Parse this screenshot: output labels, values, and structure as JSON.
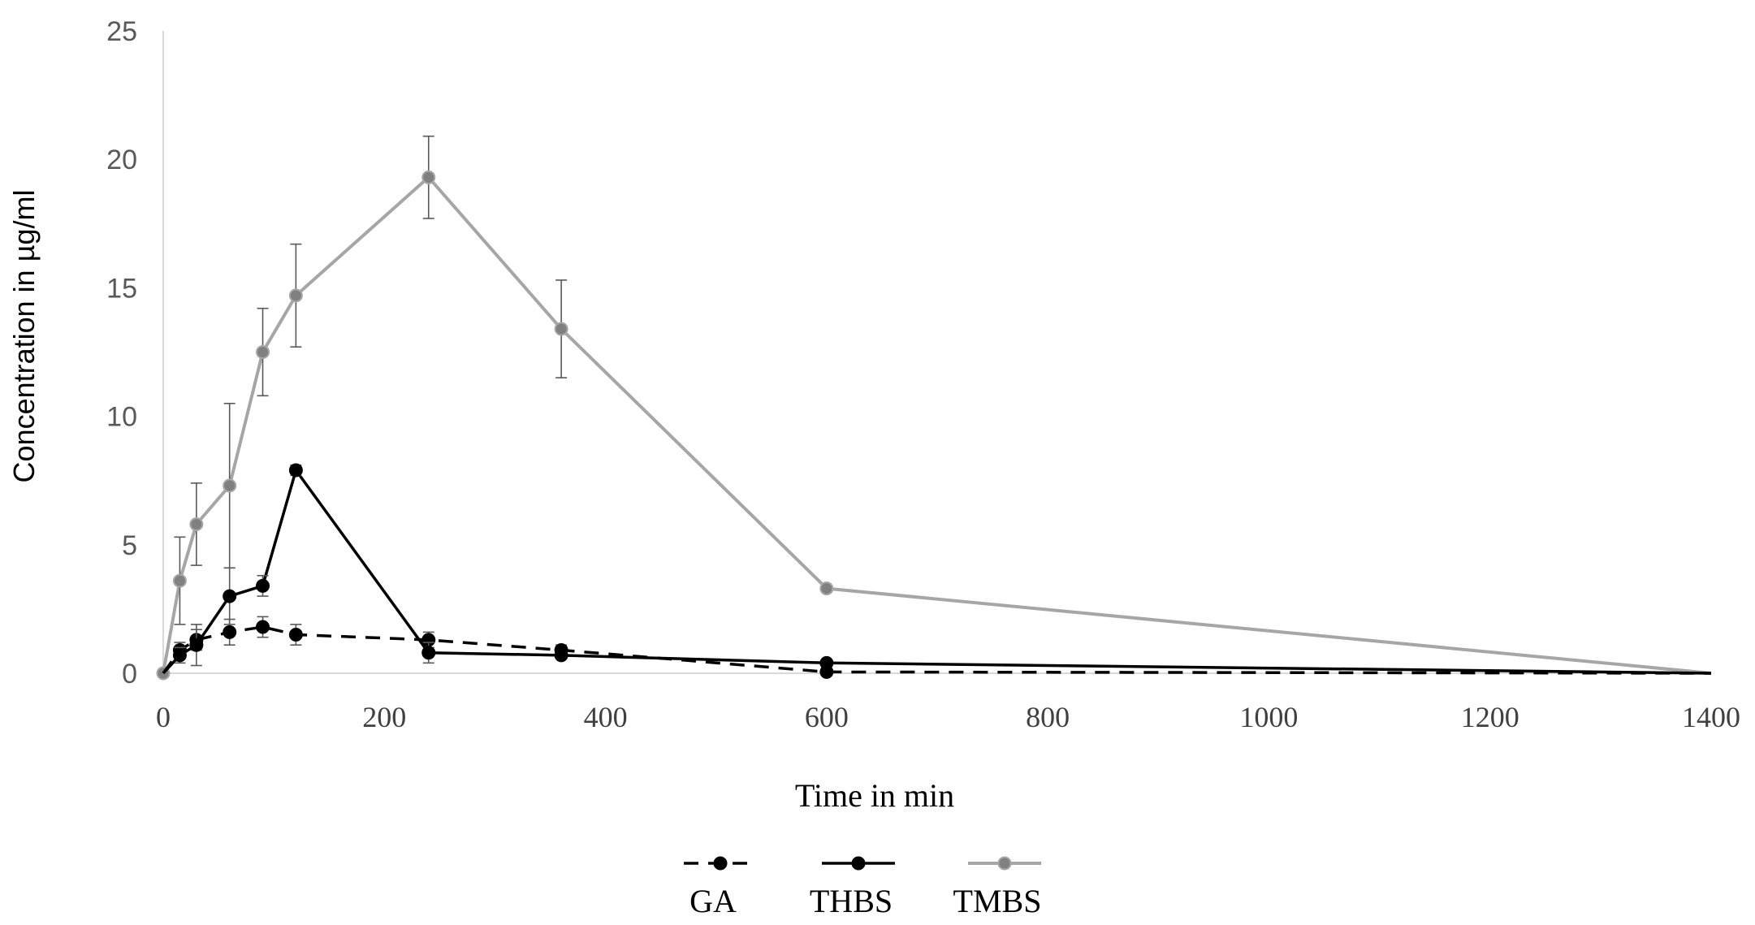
{
  "chart_data": {
    "type": "line",
    "xlabel": "Time in min",
    "ylabel": "Concentration in µg/ml",
    "xlim": [
      0,
      1400
    ],
    "ylim": [
      0,
      25
    ],
    "xticks": [
      "0",
      "200",
      "400",
      "600",
      "800",
      "1000",
      "1200",
      "1400"
    ],
    "yticks": [
      "0",
      "5",
      "10",
      "15",
      "20",
      "25"
    ],
    "grid": false,
    "legend_position": "bottom",
    "series": [
      {
        "name": "GA",
        "color": "#000000",
        "line_style": "dashed",
        "x": [
          0,
          15,
          30,
          60,
          90,
          120,
          240,
          360,
          600,
          1440
        ],
        "y": [
          0,
          0.9,
          1.3,
          1.6,
          1.8,
          1.5,
          1.3,
          0.9,
          0.05,
          0
        ],
        "error": [
          0,
          0.3,
          0.4,
          0.5,
          0.4,
          0.4,
          0.3,
          0.2,
          0.05,
          0
        ]
      },
      {
        "name": "THBS",
        "color": "#000000",
        "line_style": "solid",
        "x": [
          0,
          15,
          30,
          60,
          90,
          120,
          240,
          360,
          600,
          1440
        ],
        "y": [
          0,
          0.7,
          1.1,
          3.0,
          3.4,
          7.9,
          0.8,
          0.7,
          0.4,
          0
        ],
        "error": [
          0,
          0.3,
          0.8,
          1.1,
          0.4,
          0.2,
          0.4,
          0.1,
          0.1,
          0
        ]
      },
      {
        "name": "TMBS",
        "color": "#a6a6a6",
        "line_style": "solid",
        "x": [
          0,
          15,
          30,
          60,
          90,
          120,
          240,
          360,
          600,
          1440
        ],
        "y": [
          0,
          3.6,
          5.8,
          7.3,
          12.5,
          14.7,
          19.3,
          13.4,
          3.3,
          0
        ],
        "error": [
          0,
          1.7,
          1.6,
          3.2,
          1.7,
          2.0,
          1.6,
          1.9,
          0.1,
          0
        ]
      }
    ]
  }
}
